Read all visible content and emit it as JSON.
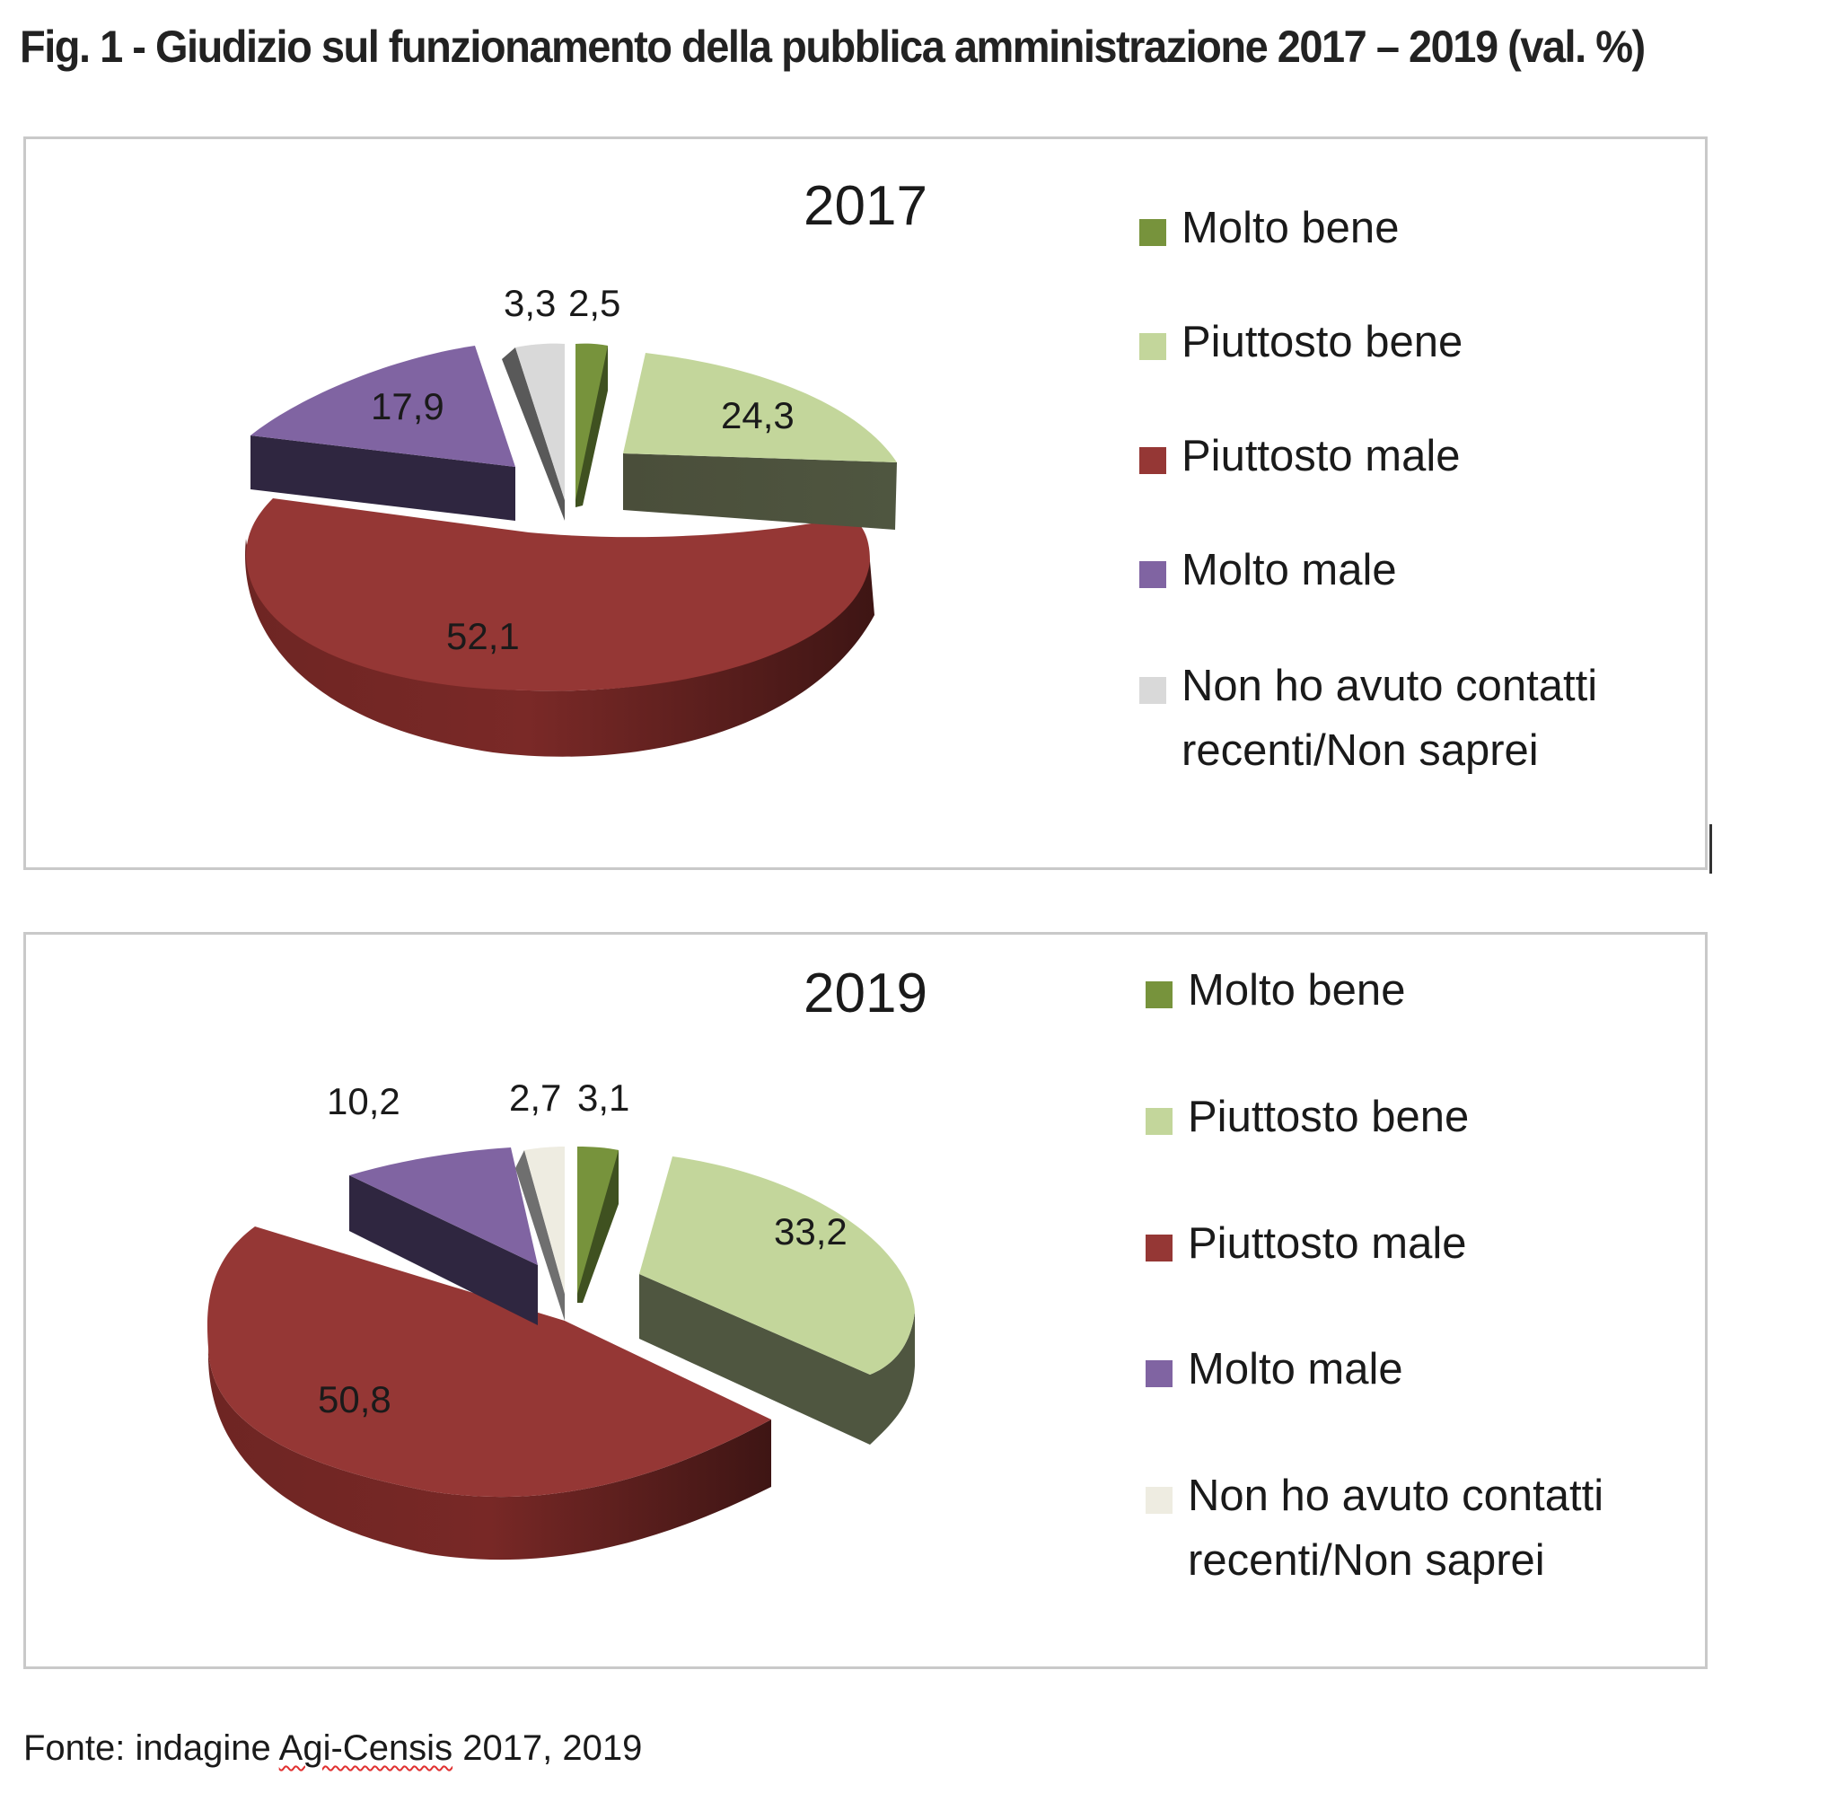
{
  "figure": {
    "title": "Fig. 1 - Giudizio sul funzionamento della pubblica amministrazione 2017 –  2019 (val. %)",
    "source_prefix": "Fonte: indagine ",
    "source_flagged": "Agi-Censis",
    "source_suffix": " 2017, 2019"
  },
  "colors": {
    "molto_bene": "#77933C",
    "piuttosto_bene": "#C3D69B",
    "piuttosto_male": "#953735",
    "molto_male": "#8064A2",
    "non_so_2017": "#D9D9D9",
    "non_so_2019": "#EEECE1"
  },
  "chart_data": [
    {
      "type": "pie",
      "title": "2017",
      "labels": [
        "Molto bene",
        "Piuttosto bene",
        "Piuttosto male",
        "Molto male",
        "Non ho avuto contatti recenti/Non saprei"
      ],
      "values": [
        2.5,
        24.3,
        52.1,
        17.9,
        3.3
      ],
      "value_labels": [
        "2,5",
        "24,3",
        "52,1",
        "17,9",
        "3,3"
      ],
      "style": "3D exploded pie",
      "legend_position": "right",
      "legend": [
        {
          "label": "Molto bene",
          "color": "#77933C"
        },
        {
          "label": "Piuttosto bene",
          "color": "#C3D69B"
        },
        {
          "label": "Piuttosto male",
          "color": "#953735"
        },
        {
          "label": "Molto male",
          "color": "#8064A2"
        },
        {
          "label_line1": "Non ho avuto contatti",
          "label_line2": "recenti/Non saprei",
          "color": "#D9D9D9"
        }
      ]
    },
    {
      "type": "pie",
      "title": "2019",
      "labels": [
        "Molto bene",
        "Piuttosto bene",
        "Piuttosto male",
        "Molto male",
        "Non ho avuto contatti recenti/Non saprei"
      ],
      "values": [
        3.1,
        33.2,
        50.8,
        10.2,
        2.7
      ],
      "value_labels": [
        "3,1",
        "33,2",
        "50,8",
        "10,2",
        "2,7"
      ],
      "style": "3D exploded pie",
      "legend_position": "right",
      "legend": [
        {
          "label": "Molto bene",
          "color": "#77933C"
        },
        {
          "label": "Piuttosto bene",
          "color": "#C3D69B"
        },
        {
          "label": "Piuttosto male",
          "color": "#953735"
        },
        {
          "label": "Molto male",
          "color": "#8064A2"
        },
        {
          "label_line1": "Non ho avuto contatti",
          "label_line2": "recenti/Non saprei",
          "color": "#EEECE1"
        }
      ]
    }
  ]
}
